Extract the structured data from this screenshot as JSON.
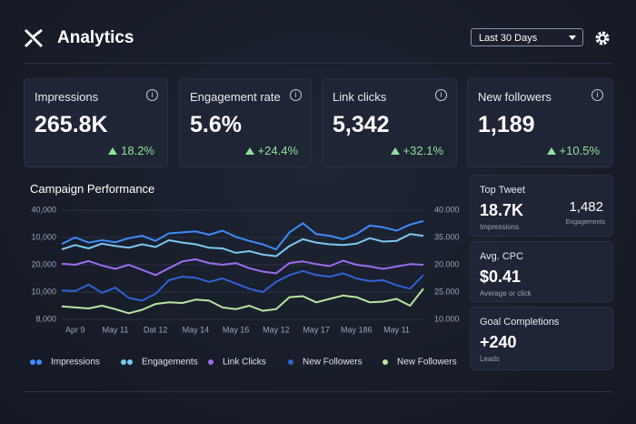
{
  "header": {
    "title": "Analytics",
    "range_selector": "Last 30 Days"
  },
  "kpis": [
    {
      "label": "Impressions",
      "value": "265.8K",
      "change": "18.2%"
    },
    {
      "label": "Engagement rate",
      "value": "5.6%",
      "change": "+24.4%"
    },
    {
      "label": "Link clicks",
      "value": "5,342",
      "change": "+32.1%"
    },
    {
      "label": "New followers",
      "value": "1,189",
      "change": "+10.5%"
    }
  ],
  "chart_data": {
    "type": "line",
    "title": "Campaign Performance",
    "categories": [
      null,
      "Apr 9",
      null,
      null,
      "May 11",
      null,
      null,
      "Dat 12",
      null,
      null,
      "May 14",
      null,
      null,
      "May 16",
      null,
      null,
      "May 12",
      null,
      null,
      "May 17",
      null,
      null,
      "May 186",
      null,
      null,
      "May 11",
      null,
      null
    ],
    "ylim": [
      8000,
      40000
    ],
    "yaxis_labels": [
      "40,000",
      "10,000",
      "20,000",
      "10,000",
      "8,000"
    ],
    "y2axis_labels": [
      "40.000",
      "35.000",
      "20.000",
      "25.000",
      "10.000"
    ],
    "series": [
      {
        "name": "Impressions",
        "color": "#3d8bfd",
        "values": [
          30100,
          32000,
          30500,
          31200,
          30600,
          31800,
          32500,
          31000,
          33200,
          33500,
          33800,
          32800,
          34000,
          32200,
          31000,
          30000,
          28500,
          33500,
          36200,
          33000,
          32500,
          31500,
          33000,
          35500,
          35000,
          34000,
          35800,
          36800
        ]
      },
      {
        "name": "Engagements",
        "color": "#7cc8f0",
        "values": [
          28500,
          29800,
          28800,
          30200,
          29500,
          29000,
          30000,
          29200,
          31200,
          30500,
          30000,
          29000,
          28800,
          27500,
          28000,
          27000,
          26500,
          29500,
          31500,
          30500,
          30000,
          29800,
          30200,
          31800,
          30800,
          31000,
          33000,
          32500
        ]
      },
      {
        "name": "Link Clicks",
        "color": "#9b6cf0",
        "values": [
          24300,
          24000,
          25100,
          23800,
          22800,
          24000,
          22500,
          21000,
          23000,
          25000,
          25600,
          24500,
          24000,
          24500,
          23000,
          22000,
          21500,
          24500,
          25000,
          24200,
          23600,
          25200,
          24000,
          23500,
          22800,
          23500,
          24200,
          24000
        ]
      },
      {
        "name": "New Followers",
        "color": "#2f62d6",
        "values": [
          16500,
          16300,
          18200,
          15800,
          17300,
          14300,
          13500,
          15500,
          19500,
          20500,
          20200,
          19000,
          20000,
          18500,
          17000,
          16000,
          19000,
          21000,
          22200,
          21000,
          20500,
          21500,
          20000,
          19200,
          19500,
          18000,
          17000,
          21000
        ]
      },
      {
        "name": "New Followers",
        "color": "#b8e6a0",
        "values": [
          11800,
          11500,
          11200,
          12000,
          11000,
          9800,
          10800,
          12500,
          13000,
          12800,
          13800,
          13500,
          11500,
          11000,
          12000,
          10500,
          11000,
          14500,
          14800,
          13000,
          14000,
          15000,
          14500,
          13000,
          13200,
          14000,
          12000,
          17000
        ]
      }
    ]
  },
  "side_cards": [
    {
      "title": "Top Tweet",
      "value": "18.7K",
      "caption": "Impressions",
      "value2": "1,482",
      "caption2": "Engagements"
    },
    {
      "title": "Avg. CPC",
      "value": "$0.41",
      "caption": "Average or click"
    },
    {
      "title": "Goal Completions",
      "value": "+240",
      "caption": "Leads"
    }
  ]
}
